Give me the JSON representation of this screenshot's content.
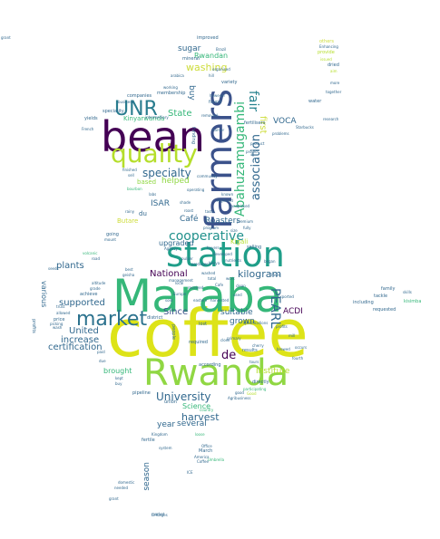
{
  "palette": {
    "lime": "#cddc39",
    "yellow": "#e0e11a",
    "green": "#35b779",
    "teal": "#21918c",
    "blue": "#31688e",
    "indigo": "#3b528b",
    "purple": "#440154",
    "ygreen": "#90d743"
  },
  "words": [
    {
      "text": "coffee",
      "color": "#dde318"
    },
    {
      "text": "Maraba",
      "color": "#35b779"
    },
    {
      "text": "Rwanda",
      "color": "#90d743"
    },
    {
      "text": "bean",
      "color": "#440154"
    },
    {
      "text": "station",
      "color": "#1f9e89"
    },
    {
      "text": "farmers",
      "color": "#3b528b"
    },
    {
      "text": "quality",
      "color": "#b5de2b"
    },
    {
      "text": "market",
      "color": "#2c728e"
    },
    {
      "text": "UNR",
      "color": "#287c8e"
    },
    {
      "text": "cooperative",
      "color": "#21918c"
    },
    {
      "text": "Abahuzamugambi",
      "color": "#35b779"
    },
    {
      "text": "association",
      "color": "#31688e"
    },
    {
      "text": "PEARL",
      "color": "#31688e"
    },
    {
      "text": "fair",
      "color": "#26828e"
    },
    {
      "text": "University",
      "color": "#31688e"
    },
    {
      "text": "specialty",
      "color": "#31688e"
    },
    {
      "text": "washing",
      "color": "#cddc39"
    },
    {
      "text": "harvest",
      "color": "#31688e"
    },
    {
      "text": "kilogram",
      "color": "#31688e"
    },
    {
      "text": "supported",
      "color": "#31688e"
    },
    {
      "text": "increase",
      "color": "#31688e"
    },
    {
      "text": "United",
      "color": "#31688e"
    },
    {
      "text": "certification",
      "color": "#31688e"
    },
    {
      "text": "National",
      "color": "#440154"
    },
    {
      "text": "plants",
      "color": "#31688e"
    },
    {
      "text": "Since",
      "color": "#3b528b"
    },
    {
      "text": "Institute",
      "color": "#b5de2b"
    },
    {
      "text": "brought",
      "color": "#35b779"
    },
    {
      "text": "several",
      "color": "#31688e"
    },
    {
      "text": "year",
      "color": "#31688e"
    },
    {
      "text": "Science",
      "color": "#35b779"
    },
    {
      "text": "Roasters",
      "color": "#31688e"
    },
    {
      "text": "Café",
      "color": "#31688e"
    },
    {
      "text": "ISAR",
      "color": "#31688e"
    },
    {
      "text": "upgraded",
      "color": "#31688e"
    },
    {
      "text": "suitable",
      "color": "#31688e"
    },
    {
      "text": "grown",
      "color": "#31688e"
    },
    {
      "text": "VOCA",
      "color": "#31688e"
    },
    {
      "text": "ACDI",
      "color": "#440154"
    },
    {
      "text": "de",
      "color": "#440154"
    },
    {
      "text": "State",
      "color": "#35b779"
    },
    {
      "text": "helped",
      "color": "#90d743"
    },
    {
      "text": "sugar",
      "color": "#31688e"
    },
    {
      "text": "Rwandan",
      "color": "#35b779"
    },
    {
      "text": "buy",
      "color": "#31688e"
    },
    {
      "text": "various",
      "color": "#31688e"
    },
    {
      "text": "season",
      "color": "#31688e"
    },
    {
      "text": "Kinyarwanda",
      "color": "#35b779"
    },
    {
      "text": "Kigali",
      "color": "#b5de2b"
    },
    {
      "text": "based",
      "color": "#90d743"
    },
    {
      "text": "du",
      "color": "#31688e"
    },
    {
      "text": "Butare",
      "color": "#cddc39"
    },
    {
      "text": "first",
      "color": "#cddc39"
    },
    {
      "text": "improved",
      "color": "#31688e"
    },
    {
      "text": "mineral",
      "color": "#31688e"
    },
    {
      "text": "companies",
      "color": "#31688e"
    },
    {
      "text": "membership",
      "color": "#31688e"
    },
    {
      "text": "variety",
      "color": "#31688e"
    },
    {
      "text": "research",
      "color": "#31688e"
    },
    {
      "text": "fertilisers",
      "color": "#31688e"
    },
    {
      "text": "yields",
      "color": "#31688e"
    },
    {
      "text": "kisimba",
      "color": "#35b779"
    },
    {
      "text": "including",
      "color": "#31688e"
    },
    {
      "text": "tackle",
      "color": "#31688e"
    },
    {
      "text": "family",
      "color": "#31688e"
    },
    {
      "text": "requested",
      "color": "#31688e"
    },
    {
      "text": "profits",
      "color": "#31688e"
    },
    {
      "text": "price",
      "color": "#31688e"
    },
    {
      "text": "achieve",
      "color": "#31688e"
    },
    {
      "text": "results",
      "color": "#31688e"
    },
    {
      "text": "primary",
      "color": "#31688e"
    },
    {
      "text": "district",
      "color": "#31688e"
    },
    {
      "text": "required",
      "color": "#31688e"
    },
    {
      "text": "according",
      "color": "#31688e"
    },
    {
      "text": "directly",
      "color": "#31688e"
    },
    {
      "text": "pipeline",
      "color": "#31688e"
    },
    {
      "text": "union",
      "color": "#31688e"
    },
    {
      "text": "March",
      "color": "#31688e"
    },
    {
      "text": "America",
      "color": "#31688e"
    },
    {
      "text": "fertile",
      "color": "#31688e"
    },
    {
      "text": "domestic",
      "color": "#31688e"
    },
    {
      "text": "Kingdom",
      "color": "#31688e"
    },
    {
      "text": "others",
      "color": "#cddc39"
    },
    {
      "text": "dried",
      "color": "#31688e"
    },
    {
      "text": "water",
      "color": "#31688e"
    },
    {
      "text": "speciality",
      "color": "#31688e"
    },
    {
      "text": "found",
      "color": "#31688e"
    },
    {
      "text": "arabica",
      "color": "#31688e"
    },
    {
      "text": "funding",
      "color": "#31688e"
    },
    {
      "text": "removed",
      "color": "#31688e"
    },
    {
      "text": "harder",
      "color": "#31688e"
    },
    {
      "text": "Brazil",
      "color": "#31688e"
    },
    {
      "text": "however",
      "color": "#31688e"
    },
    {
      "text": "business",
      "color": "#31688e"
    },
    {
      "text": "intermediary",
      "color": "#31688e"
    },
    {
      "text": "working",
      "color": "#31688e"
    },
    {
      "text": "going",
      "color": "#31688e"
    },
    {
      "text": "mount",
      "color": "#31688e"
    },
    {
      "text": "rainy",
      "color": "#31688e"
    },
    {
      "text": "best",
      "color": "#31688e"
    },
    {
      "text": "geisha",
      "color": "#31688e"
    },
    {
      "text": "selling",
      "color": "#31688e"
    },
    {
      "text": "French",
      "color": "#31688e"
    },
    {
      "text": "grade",
      "color": "#31688e"
    },
    {
      "text": "altitude",
      "color": "#31688e"
    },
    {
      "text": "received",
      "color": "#31688e"
    },
    {
      "text": "lost",
      "color": "#31688e"
    },
    {
      "text": "people",
      "color": "#31688e"
    },
    {
      "text": "close",
      "color": "#31688e"
    },
    {
      "text": "kept",
      "color": "#31688e"
    },
    {
      "text": "buy",
      "color": "#31688e"
    },
    {
      "text": "paid",
      "color": "#31688e"
    },
    {
      "text": "due",
      "color": "#31688e"
    },
    {
      "text": "wash",
      "color": "#31688e"
    },
    {
      "text": "picking",
      "color": "#31688e"
    },
    {
      "text": "allowed",
      "color": "#31688e"
    },
    {
      "text": "trust",
      "color": "#31688e"
    },
    {
      "text": "seeds",
      "color": "#31688e"
    },
    {
      "text": "road",
      "color": "#31688e"
    },
    {
      "text": "volcanic",
      "color": "#35b779"
    },
    {
      "text": "country",
      "color": "#35b779"
    },
    {
      "text": "loose",
      "color": "#35b779"
    },
    {
      "text": "Office",
      "color": "#31688e"
    },
    {
      "text": "system",
      "color": "#31688e"
    },
    {
      "text": "Coffee",
      "color": "#31688e"
    },
    {
      "text": "needed",
      "color": "#31688e"
    },
    {
      "text": "market",
      "color": "#31688e"
    },
    {
      "text": "tours",
      "color": "#31688e"
    },
    {
      "text": "cherry",
      "color": "#31688e"
    },
    {
      "text": "brewed",
      "color": "#31688e"
    },
    {
      "text": "occurs",
      "color": "#31688e"
    },
    {
      "text": "fourth",
      "color": "#31688e"
    },
    {
      "text": "participating",
      "color": "#35b779"
    },
    {
      "text": "Agribusiness",
      "color": "#31688e"
    },
    {
      "text": "good",
      "color": "#31688e"
    },
    {
      "text": "Good",
      "color": "#b5de2b"
    },
    {
      "text": "Linkages",
      "color": "#31688e"
    },
    {
      "text": "Enhancing",
      "color": "#31688e"
    },
    {
      "text": "provide",
      "color": "#b5de2b"
    },
    {
      "text": "issued",
      "color": "#b5de2b"
    },
    {
      "text": "aim",
      "color": "#b5de2b"
    },
    {
      "text": "grant",
      "color": "#31688e"
    },
    {
      "text": "Umbrella",
      "color": "#35b779"
    },
    {
      "text": "ICE",
      "color": "#31688e"
    },
    {
      "text": "skills",
      "color": "#31688e"
    },
    {
      "text": "more",
      "color": "#31688e"
    },
    {
      "text": "together",
      "color": "#31688e"
    },
    {
      "text": "Starbucks",
      "color": "#31688e"
    },
    {
      "text": "specifications",
      "color": "#31688e"
    },
    {
      "text": "profits",
      "color": "#31688e"
    },
    {
      "text": "mill",
      "color": "#31688e"
    },
    {
      "text": "began",
      "color": "#31688e"
    },
    {
      "text": "Travel",
      "color": "#31688e"
    },
    {
      "text": "exported",
      "color": "#31688e"
    },
    {
      "text": "washed",
      "color": "#31688e"
    },
    {
      "text": "total",
      "color": "#31688e"
    },
    {
      "text": "work",
      "color": "#31688e"
    },
    {
      "text": "Cafe",
      "color": "#31688e"
    },
    {
      "text": "local",
      "color": "#31688e"
    },
    {
      "text": "Europe",
      "color": "#31688e"
    },
    {
      "text": "sold",
      "color": "#31688e"
    },
    {
      "text": "eastern",
      "color": "#31688e"
    },
    {
      "text": "harvested",
      "color": "#31688e"
    },
    {
      "text": "used",
      "color": "#31688e"
    },
    {
      "text": "clean",
      "color": "#31688e"
    },
    {
      "text": "shade",
      "color": "#31688e"
    },
    {
      "text": "roast",
      "color": "#31688e"
    },
    {
      "text": "taste",
      "color": "#31688e"
    },
    {
      "text": "Highland",
      "color": "#31688e"
    },
    {
      "text": "known",
      "color": "#31688e"
    },
    {
      "text": "management",
      "color": "#31688e"
    },
    {
      "text": "pulper",
      "color": "#31688e"
    },
    {
      "text": "produces",
      "color": "#31688e"
    },
    {
      "text": "Kenya",
      "color": "#31688e"
    },
    {
      "text": "nutrients",
      "color": "#31688e"
    },
    {
      "text": "project",
      "color": "#31688e"
    },
    {
      "text": "product",
      "color": "#31688e"
    },
    {
      "text": "problems",
      "color": "#31688e"
    },
    {
      "text": "handpicked",
      "color": "#31688e"
    },
    {
      "text": "premium",
      "color": "#31688e"
    },
    {
      "text": "fully",
      "color": "#31688e"
    },
    {
      "text": "bourbon",
      "color": "#35b779"
    },
    {
      "text": "labs",
      "color": "#31688e"
    },
    {
      "text": "finished",
      "color": "#31688e"
    },
    {
      "text": "sell",
      "color": "#31688e"
    },
    {
      "text": "organised",
      "color": "#31688e"
    },
    {
      "text": "hill",
      "color": "#31688e"
    },
    {
      "text": "community",
      "color": "#31688e"
    },
    {
      "text": "operating",
      "color": "#31688e"
    },
    {
      "text": "program",
      "color": "#31688e"
    },
    {
      "text": "size",
      "color": "#31688e"
    },
    {
      "text": "Agency",
      "color": "#31688e"
    },
    {
      "text": "buyers",
      "color": "#31688e"
    },
    {
      "text": "developed",
      "color": "#31688e"
    },
    {
      "text": "grant",
      "color": "#31688e"
    }
  ]
}
